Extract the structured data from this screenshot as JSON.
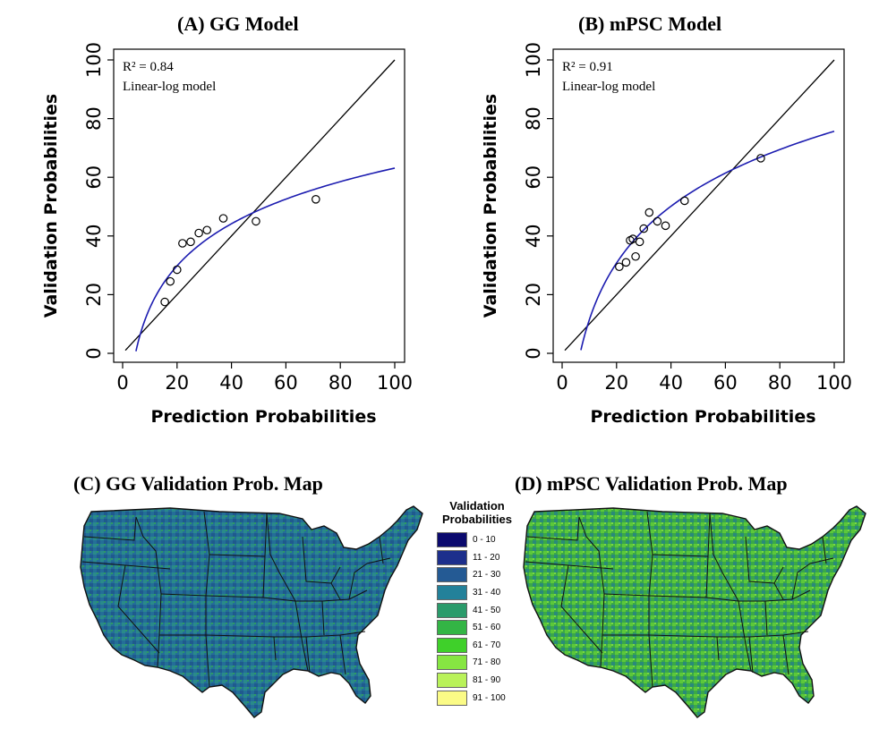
{
  "chart_data": [
    {
      "type": "scatter",
      "title": "(A) GG Model",
      "xlabel": "Prediction Probabilities",
      "ylabel": "Validation Probabilities",
      "xlim": [
        0,
        100
      ],
      "ylim": [
        0,
        100
      ],
      "xticks": [
        "0",
        "20",
        "40",
        "60",
        "80",
        "100"
      ],
      "yticks": [
        "0",
        "20",
        "40",
        "60",
        "80",
        "100"
      ],
      "annotation": [
        "R² = 0.84",
        "Linear-log model"
      ],
      "points": [
        {
          "x": 15.5,
          "y": 17.5
        },
        {
          "x": 17.5,
          "y": 24.5
        },
        {
          "x": 20,
          "y": 28.5
        },
        {
          "x": 22,
          "y": 37.5
        },
        {
          "x": 25,
          "y": 38
        },
        {
          "x": 28,
          "y": 41
        },
        {
          "x": 31,
          "y": 42
        },
        {
          "x": 37,
          "y": 46
        },
        {
          "x": 49,
          "y": 45
        },
        {
          "x": 71,
          "y": 52.5
        }
      ],
      "one_to_one_line": {
        "from": [
          1,
          1
        ],
        "to": [
          100,
          100
        ]
      },
      "fit_curve": {
        "model": "linear-log",
        "a": -32.2,
        "b": 20.7,
        "x_range": [
          4.9,
          100
        ],
        "color": "#1c1cb0"
      }
    },
    {
      "type": "scatter",
      "title": "(B) mPSC Model",
      "xlabel": "Prediction Probabilities",
      "ylabel": "Validation Probabilities",
      "xlim": [
        0,
        100
      ],
      "ylim": [
        0,
        100
      ],
      "xticks": [
        "0",
        "20",
        "40",
        "60",
        "80",
        "100"
      ],
      "yticks": [
        "0",
        "20",
        "40",
        "60",
        "80",
        "100"
      ],
      "annotation": [
        "R² = 0.91",
        "Linear-log model"
      ],
      "points": [
        {
          "x": 21,
          "y": 29.5
        },
        {
          "x": 23.5,
          "y": 31
        },
        {
          "x": 25,
          "y": 38.5
        },
        {
          "x": 26,
          "y": 39
        },
        {
          "x": 27,
          "y": 33
        },
        {
          "x": 28.5,
          "y": 38
        },
        {
          "x": 30,
          "y": 42.5
        },
        {
          "x": 32,
          "y": 48
        },
        {
          "x": 35,
          "y": 45
        },
        {
          "x": 38,
          "y": 43.5
        },
        {
          "x": 45,
          "y": 52
        },
        {
          "x": 73,
          "y": 66.5
        }
      ],
      "one_to_one_line": {
        "from": [
          1,
          1
        ],
        "to": [
          100,
          100
        ]
      },
      "fit_curve": {
        "model": "linear-log",
        "a": -52.8,
        "b": 27.9,
        "x_range": [
          6.9,
          100
        ],
        "color": "#1c1cb0"
      }
    }
  ],
  "maps": {
    "gg": {
      "title": "(C) GG Validation Prob. Map"
    },
    "mpsc": {
      "title": "(D) mPSC Validation Prob. Map"
    }
  },
  "legend": {
    "title_line1": "Validation",
    "title_line2": "Probabilities",
    "items": [
      {
        "label": "0 - 10",
        "color": "#0b0a6e"
      },
      {
        "label": "11 - 20",
        "color": "#1d2f8c"
      },
      {
        "label": "21 - 30",
        "color": "#245a94"
      },
      {
        "label": "31 - 40",
        "color": "#23819a"
      },
      {
        "label": "41 - 50",
        "color": "#2a9b6b"
      },
      {
        "label": "51 - 60",
        "color": "#33b545"
      },
      {
        "label": "61 - 70",
        "color": "#3fd02a"
      },
      {
        "label": "71 - 80",
        "color": "#86e642"
      },
      {
        "label": "81 - 90",
        "color": "#b9f25a"
      },
      {
        "label": "91 - 100",
        "color": "#fbfb86"
      }
    ]
  }
}
